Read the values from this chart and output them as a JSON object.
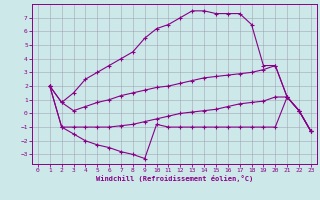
{
  "xlabel": "Windchill (Refroidissement éolien,°C)",
  "bg_color": "#cce8e8",
  "line_color": "#880088",
  "grid_color": "#9999aa",
  "xlim": [
    -0.5,
    23.5
  ],
  "ylim": [
    -3.7,
    8.0
  ],
  "xticks": [
    0,
    1,
    2,
    3,
    4,
    5,
    6,
    7,
    8,
    9,
    10,
    11,
    12,
    13,
    14,
    15,
    16,
    17,
    18,
    19,
    20,
    21,
    22,
    23
  ],
  "yticks": [
    -3,
    -2,
    -1,
    0,
    1,
    2,
    3,
    4,
    5,
    6,
    7
  ],
  "curve_top_x": [
    1,
    2,
    3,
    4,
    5,
    6,
    7,
    8,
    9,
    10,
    11,
    12,
    13,
    14,
    15,
    16,
    17,
    18,
    19,
    20,
    21,
    22,
    23
  ],
  "curve_top_y": [
    2.0,
    0.8,
    1.5,
    2.5,
    3.0,
    3.5,
    4.0,
    4.5,
    5.5,
    6.2,
    6.5,
    7.0,
    7.5,
    7.5,
    7.3,
    7.3,
    7.3,
    6.5,
    3.5,
    3.5,
    1.2,
    0.2,
    -1.3
  ],
  "curve_umid_x": [
    1,
    2,
    3,
    4,
    5,
    6,
    7,
    8,
    9,
    10,
    11,
    12,
    13,
    14,
    15,
    16,
    17,
    18,
    19,
    20,
    21,
    22,
    23
  ],
  "curve_umid_y": [
    2.0,
    0.8,
    0.2,
    0.5,
    0.8,
    1.0,
    1.3,
    1.5,
    1.7,
    1.9,
    2.0,
    2.2,
    2.4,
    2.6,
    2.7,
    2.8,
    2.9,
    3.0,
    3.2,
    3.5,
    1.2,
    0.2,
    -1.3
  ],
  "curve_lmid_x": [
    1,
    2,
    3,
    4,
    5,
    6,
    7,
    8,
    9,
    10,
    11,
    12,
    13,
    14,
    15,
    16,
    17,
    18,
    19,
    20,
    21,
    22,
    23
  ],
  "curve_lmid_y": [
    2.0,
    -1.0,
    -1.0,
    -1.0,
    -1.0,
    -1.0,
    -0.9,
    -0.8,
    -0.6,
    -0.4,
    -0.2,
    0.0,
    0.1,
    0.2,
    0.3,
    0.5,
    0.7,
    0.8,
    0.9,
    1.2,
    1.2,
    0.2,
    -1.3
  ],
  "curve_bot_x": [
    1,
    2,
    3,
    4,
    5,
    6,
    7,
    8,
    9,
    10,
    11,
    12,
    13,
    14,
    15,
    16,
    17,
    18,
    19,
    20,
    21,
    22,
    23
  ],
  "curve_bot_y": [
    2.0,
    -1.0,
    -1.5,
    -2.0,
    -2.3,
    -2.5,
    -2.8,
    -3.0,
    -3.3,
    -0.8,
    -1.0,
    -1.0,
    -1.0,
    -1.0,
    -1.0,
    -1.0,
    -1.0,
    -1.0,
    -1.0,
    -1.0,
    1.2,
    0.2,
    -1.3
  ]
}
